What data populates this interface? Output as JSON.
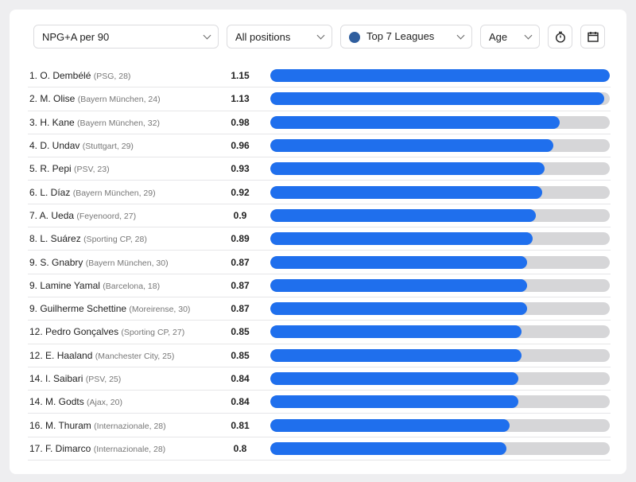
{
  "filters": {
    "metric": "NPG+A per 90",
    "position": "All positions",
    "league": "Top 7 Leagues",
    "age": "Age"
  },
  "icons": {
    "timer": "stopwatch-icon",
    "calendar": "calendar-icon",
    "league": "globe-icon"
  },
  "accent": "#1f6fed",
  "chart_data": {
    "type": "bar",
    "max": 1.15,
    "rows": [
      {
        "rank": "1. O. Dembélé",
        "club": "(PSG, 28)",
        "value": "1.15"
      },
      {
        "rank": "2. M. Olise",
        "club": "(Bayern München, 24)",
        "value": "1.13"
      },
      {
        "rank": "3. H. Kane",
        "club": "(Bayern München, 32)",
        "value": "0.98"
      },
      {
        "rank": "4. D. Undav",
        "club": "(Stuttgart, 29)",
        "value": "0.96"
      },
      {
        "rank": "5. R. Pepi",
        "club": "(PSV, 23)",
        "value": "0.93"
      },
      {
        "rank": "6. L. Díaz",
        "club": "(Bayern München, 29)",
        "value": "0.92"
      },
      {
        "rank": "7. A. Ueda",
        "club": "(Feyenoord, 27)",
        "value": "0.9"
      },
      {
        "rank": "8. L. Suárez",
        "club": "(Sporting CP, 28)",
        "value": "0.89"
      },
      {
        "rank": "9. S. Gnabry",
        "club": "(Bayern München, 30)",
        "value": "0.87"
      },
      {
        "rank": "9. Lamine Yamal",
        "club": "(Barcelona, 18)",
        "value": "0.87"
      },
      {
        "rank": "9. Guilherme Schettine",
        "club": "(Moreirense, 30)",
        "value": "0.87"
      },
      {
        "rank": "12. Pedro Gonçalves",
        "club": "(Sporting CP, 27)",
        "value": "0.85"
      },
      {
        "rank": "12. E. Haaland",
        "club": "(Manchester City, 25)",
        "value": "0.85"
      },
      {
        "rank": "14. I. Saibari",
        "club": "(PSV, 25)",
        "value": "0.84"
      },
      {
        "rank": "14. M. Godts",
        "club": "(Ajax, 20)",
        "value": "0.84"
      },
      {
        "rank": "16. M. Thuram",
        "club": "(Internazionale, 28)",
        "value": "0.81"
      },
      {
        "rank": "17. F. Dimarco",
        "club": "(Internazionale, 28)",
        "value": "0.8"
      }
    ]
  }
}
